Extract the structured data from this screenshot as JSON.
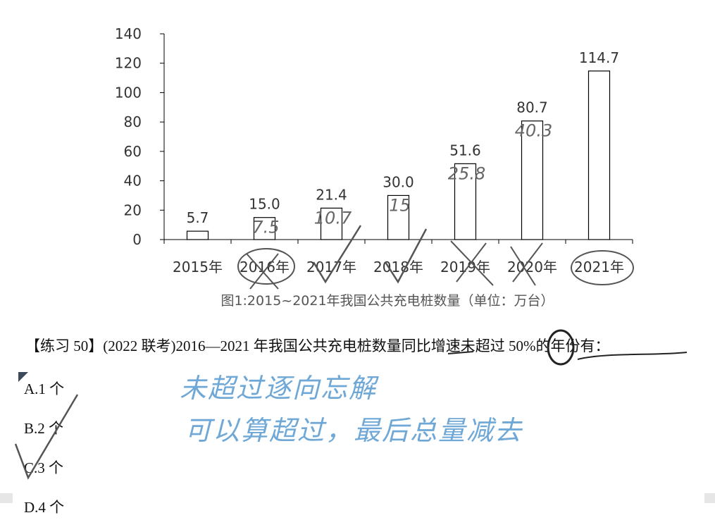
{
  "chart_data": {
    "type": "bar",
    "categories": [
      "2015年",
      "2016年",
      "2017年",
      "2018年",
      "2019年",
      "2020年",
      "2021年"
    ],
    "values": [
      5.7,
      15.0,
      21.4,
      30.0,
      51.6,
      80.7,
      114.7
    ],
    "data_labels": [
      "5.7",
      "15.0",
      "21.4",
      "30.0",
      "51.6",
      "80.7",
      "114.7"
    ],
    "yticks": [
      "0",
      "20",
      "40",
      "60",
      "80",
      "100",
      "120",
      "140"
    ],
    "ylim": [
      0,
      140
    ],
    "title": "图1:2015~2021年我国公共充电桩数量（单位：万台）",
    "xlabel": "",
    "ylabel": "",
    "grid": false,
    "bar_fill": "#ffffff",
    "bar_stroke": "#000000"
  },
  "annotations": {
    "bar_notes": [
      "7.5",
      "10.7",
      "15",
      "25.8",
      "40.3"
    ],
    "margin_note_1": "未超过逐向忘解",
    "margin_note_2": "可以算超过，最后总量减去",
    "pencil_color": "#555555",
    "ink_color": "#6fa8d6"
  },
  "question": {
    "text": "【练习 50】(2022 联考)2016—2021 年我国公共充电桩数量同比增速未超过 50%的年份有："
  },
  "options": [
    {
      "label": "A.1 个"
    },
    {
      "label": "B.2 个"
    },
    {
      "label": "C.3 个"
    },
    {
      "label": "D.4 个"
    }
  ]
}
